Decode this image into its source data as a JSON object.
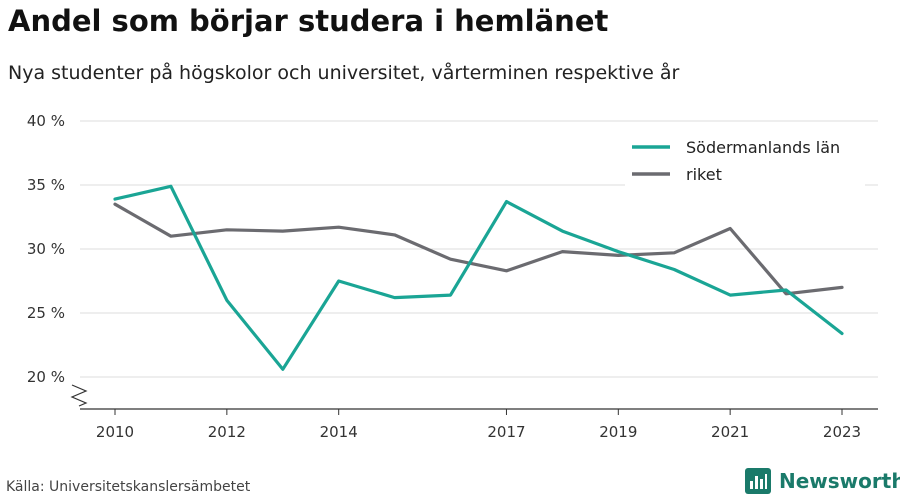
{
  "chart_data": {
    "type": "line",
    "title": "Andel som börjar studera i hemlänet",
    "subtitle": "Nya studenter på högskolor och universitet, vårterminen respektive år",
    "x": [
      2010,
      2011,
      2012,
      2013,
      2014,
      2015,
      2016,
      2017,
      2018,
      2019,
      2020,
      2021,
      2022,
      2023
    ],
    "x_ticks": [
      2010,
      2012,
      2014,
      2017,
      2019,
      2021,
      2023
    ],
    "x_tick_labels": [
      "2010",
      "2012",
      "2014",
      "2017",
      "2019",
      "2021",
      "2023"
    ],
    "xlim": [
      2010,
      2023
    ],
    "y_ticks": [
      20,
      25,
      30,
      35,
      40
    ],
    "y_tick_labels": [
      "20 %",
      "25 %",
      "30 %",
      "35 %",
      "40 %"
    ],
    "ylim": [
      20,
      40
    ],
    "y_axis_break": true,
    "grid": "horizontal",
    "legend_position": "top-right",
    "series": [
      {
        "name": "Södermanlands län",
        "color": "#1aa595",
        "values": [
          33.9,
          34.9,
          26.0,
          20.6,
          27.5,
          26.2,
          26.4,
          33.7,
          31.4,
          29.8,
          28.4,
          26.4,
          26.8,
          23.4
        ]
      },
      {
        "name": "riket",
        "color": "#6b6b70",
        "values": [
          33.5,
          31.0,
          31.5,
          31.4,
          31.7,
          31.1,
          29.2,
          28.3,
          29.8,
          29.5,
          29.7,
          31.6,
          26.5,
          27.0
        ]
      }
    ]
  },
  "source": "Källa: Universitetskanslersämbetet",
  "brand": {
    "name": "Newsworthy",
    "icon": "bar-chart-logo-icon",
    "color": "#1a7a6a"
  }
}
